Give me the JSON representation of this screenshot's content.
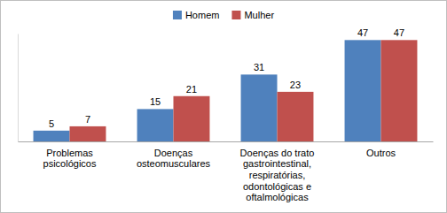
{
  "chart_data": {
    "type": "bar",
    "categories": [
      "Problemas psicológicos",
      "Doenças osteomusculares",
      "Doenças do trato gastrointestinal, respiratórias, odontológicas e oftalmológicas",
      "Outros"
    ],
    "series": [
      {
        "name": "Homem",
        "color": "#4f81bd",
        "values": [
          5,
          15,
          31,
          47
        ]
      },
      {
        "name": "Mulher",
        "color": "#c0504d",
        "values": [
          7,
          21,
          23,
          47
        ]
      }
    ],
    "ylim": [
      0,
      50
    ],
    "legend": "top",
    "data_labels": true,
    "tick_labels": "x"
  }
}
